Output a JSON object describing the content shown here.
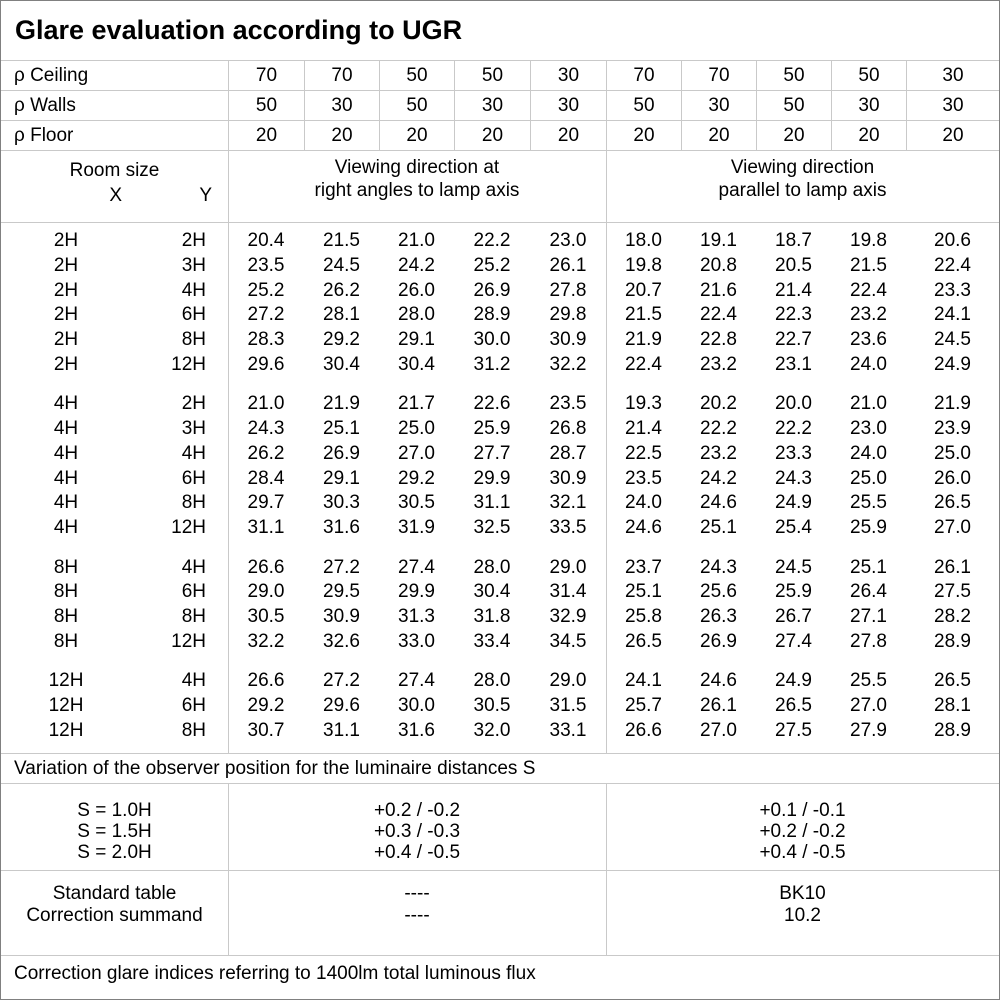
{
  "title": "Glare evaluation according to UGR",
  "reflectance_rows": [
    {
      "label": "ρ Ceiling",
      "values": [
        "70",
        "70",
        "50",
        "50",
        "30",
        "70",
        "70",
        "50",
        "50",
        "30"
      ]
    },
    {
      "label": "ρ Walls",
      "values": [
        "50",
        "30",
        "50",
        "30",
        "30",
        "50",
        "30",
        "50",
        "30",
        "30"
      ]
    },
    {
      "label": "ρ Floor",
      "values": [
        "20",
        "20",
        "20",
        "20",
        "20",
        "20",
        "20",
        "20",
        "20",
        "20"
      ]
    }
  ],
  "table_header": {
    "room_size": "Room size",
    "x": "X",
    "y": "Y",
    "right_angles_line1": "Viewing direction at",
    "right_angles_line2": "right angles to lamp axis",
    "parallel_line1": "Viewing direction",
    "parallel_line2": "parallel to lamp axis"
  },
  "ugr_blocks": [
    {
      "rows": [
        {
          "x": "2H",
          "y": "2H",
          "right_angles": [
            "20.4",
            "21.5",
            "21.0",
            "22.2",
            "23.0"
          ],
          "parallel": [
            "18.0",
            "19.1",
            "18.7",
            "19.8",
            "20.6"
          ]
        },
        {
          "x": "2H",
          "y": "3H",
          "right_angles": [
            "23.5",
            "24.5",
            "24.2",
            "25.2",
            "26.1"
          ],
          "parallel": [
            "19.8",
            "20.8",
            "20.5",
            "21.5",
            "22.4"
          ]
        },
        {
          "x": "2H",
          "y": "4H",
          "right_angles": [
            "25.2",
            "26.2",
            "26.0",
            "26.9",
            "27.8"
          ],
          "parallel": [
            "20.7",
            "21.6",
            "21.4",
            "22.4",
            "23.3"
          ]
        },
        {
          "x": "2H",
          "y": "6H",
          "right_angles": [
            "27.2",
            "28.1",
            "28.0",
            "28.9",
            "29.8"
          ],
          "parallel": [
            "21.5",
            "22.4",
            "22.3",
            "23.2",
            "24.1"
          ]
        },
        {
          "x": "2H",
          "y": "8H",
          "right_angles": [
            "28.3",
            "29.2",
            "29.1",
            "30.0",
            "30.9"
          ],
          "parallel": [
            "21.9",
            "22.8",
            "22.7",
            "23.6",
            "24.5"
          ]
        },
        {
          "x": "2H",
          "y": "12H",
          "right_angles": [
            "29.6",
            "30.4",
            "30.4",
            "31.2",
            "32.2"
          ],
          "parallel": [
            "22.4",
            "23.2",
            "23.1",
            "24.0",
            "24.9"
          ]
        }
      ]
    },
    {
      "rows": [
        {
          "x": "4H",
          "y": "2H",
          "right_angles": [
            "21.0",
            "21.9",
            "21.7",
            "22.6",
            "23.5"
          ],
          "parallel": [
            "19.3",
            "20.2",
            "20.0",
            "21.0",
            "21.9"
          ]
        },
        {
          "x": "4H",
          "y": "3H",
          "right_angles": [
            "24.3",
            "25.1",
            "25.0",
            "25.9",
            "26.8"
          ],
          "parallel": [
            "21.4",
            "22.2",
            "22.2",
            "23.0",
            "23.9"
          ]
        },
        {
          "x": "4H",
          "y": "4H",
          "right_angles": [
            "26.2",
            "26.9",
            "27.0",
            "27.7",
            "28.7"
          ],
          "parallel": [
            "22.5",
            "23.2",
            "23.3",
            "24.0",
            "25.0"
          ]
        },
        {
          "x": "4H",
          "y": "6H",
          "right_angles": [
            "28.4",
            "29.1",
            "29.2",
            "29.9",
            "30.9"
          ],
          "parallel": [
            "23.5",
            "24.2",
            "24.3",
            "25.0",
            "26.0"
          ]
        },
        {
          "x": "4H",
          "y": "8H",
          "right_angles": [
            "29.7",
            "30.3",
            "30.5",
            "31.1",
            "32.1"
          ],
          "parallel": [
            "24.0",
            "24.6",
            "24.9",
            "25.5",
            "26.5"
          ]
        },
        {
          "x": "4H",
          "y": "12H",
          "right_angles": [
            "31.1",
            "31.6",
            "31.9",
            "32.5",
            "33.5"
          ],
          "parallel": [
            "24.6",
            "25.1",
            "25.4",
            "25.9",
            "27.0"
          ]
        }
      ]
    },
    {
      "rows": [
        {
          "x": "8H",
          "y": "4H",
          "right_angles": [
            "26.6",
            "27.2",
            "27.4",
            "28.0",
            "29.0"
          ],
          "parallel": [
            "23.7",
            "24.3",
            "24.5",
            "25.1",
            "26.1"
          ]
        },
        {
          "x": "8H",
          "y": "6H",
          "right_angles": [
            "29.0",
            "29.5",
            "29.9",
            "30.4",
            "31.4"
          ],
          "parallel": [
            "25.1",
            "25.6",
            "25.9",
            "26.4",
            "27.5"
          ]
        },
        {
          "x": "8H",
          "y": "8H",
          "right_angles": [
            "30.5",
            "30.9",
            "31.3",
            "31.8",
            "32.9"
          ],
          "parallel": [
            "25.8",
            "26.3",
            "26.7",
            "27.1",
            "28.2"
          ]
        },
        {
          "x": "8H",
          "y": "12H",
          "right_angles": [
            "32.2",
            "32.6",
            "33.0",
            "33.4",
            "34.5"
          ],
          "parallel": [
            "26.5",
            "26.9",
            "27.4",
            "27.8",
            "28.9"
          ]
        }
      ]
    },
    {
      "rows": [
        {
          "x": "12H",
          "y": "4H",
          "right_angles": [
            "26.6",
            "27.2",
            "27.4",
            "28.0",
            "29.0"
          ],
          "parallel": [
            "24.1",
            "24.6",
            "24.9",
            "25.5",
            "26.5"
          ]
        },
        {
          "x": "12H",
          "y": "6H",
          "right_angles": [
            "29.2",
            "29.6",
            "30.0",
            "30.5",
            "31.5"
          ],
          "parallel": [
            "25.7",
            "26.1",
            "26.5",
            "27.0",
            "28.1"
          ]
        },
        {
          "x": "12H",
          "y": "8H",
          "right_angles": [
            "30.7",
            "31.1",
            "31.6",
            "32.0",
            "33.1"
          ],
          "parallel": [
            "26.6",
            "27.0",
            "27.5",
            "27.9",
            "28.9"
          ]
        }
      ]
    }
  ],
  "variation_note": "Variation of the observer position for the luminaire distances S",
  "spacing_rows": [
    {
      "label": "S = 1.0H",
      "right_angles": "+0.2 / -0.2",
      "parallel": "+0.1 / -0.1"
    },
    {
      "label": "S = 1.5H",
      "right_angles": "+0.3 / -0.3",
      "parallel": "+0.2 / -0.2"
    },
    {
      "label": "S = 2.0H",
      "right_angles": "+0.4 / -0.5",
      "parallel": "+0.4 / -0.5"
    }
  ],
  "summary_rows": [
    {
      "label": "Standard table",
      "right_angles": "----",
      "parallel": "BK10"
    },
    {
      "label": "Correction summand",
      "right_angles": "----",
      "parallel": "10.2"
    }
  ],
  "footer_note": "Correction glare indices referring to 1400lm total luminous flux"
}
